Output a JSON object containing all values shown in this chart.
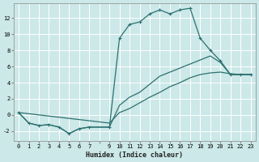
{
  "bg_color": "#cce8e8",
  "grid_color": "#ffffff",
  "line_color": "#2d7070",
  "xlabel": "Humidex (Indice chaleur)",
  "xlim": [
    -0.5,
    23.5
  ],
  "ylim": [
    -3.2,
    13.8
  ],
  "xtick_positions": [
    0,
    1,
    2,
    3,
    4,
    5,
    6,
    7,
    8,
    9,
    10,
    11,
    12,
    13,
    14,
    15,
    16,
    17,
    18,
    19,
    20,
    21,
    22,
    23
  ],
  "xtick_labels": [
    "0",
    "1",
    "2",
    "3",
    "4",
    "5",
    "6",
    "7",
    "",
    "9",
    "10",
    "11",
    "12",
    "13",
    "14",
    "15",
    "16",
    "17",
    "18",
    "19",
    "20",
    "21",
    "22",
    "23"
  ],
  "ytick_positions": [
    -2,
    0,
    2,
    4,
    6,
    8,
    10,
    12
  ],
  "curve1_x": [
    0,
    1,
    2,
    3,
    4,
    5,
    6,
    7,
    9,
    10,
    11,
    12,
    13,
    14,
    15,
    16,
    17,
    18,
    19,
    20,
    21,
    22,
    23
  ],
  "curve1_y": [
    0.3,
    -1.0,
    -1.3,
    -1.2,
    -1.5,
    -2.3,
    -1.7,
    -1.5,
    -1.5,
    9.5,
    11.2,
    11.5,
    12.5,
    13.0,
    12.5,
    13.0,
    13.2,
    9.5,
    8.0,
    6.7,
    5.0,
    5.0,
    5.0
  ],
  "curve2_x": [
    0,
    1,
    2,
    3,
    4,
    5,
    6,
    7,
    9,
    10,
    11,
    12,
    13,
    14,
    15,
    16,
    17,
    18,
    19,
    20,
    21,
    22,
    23
  ],
  "curve2_y": [
    0.3,
    -1.0,
    -1.3,
    -1.2,
    -1.5,
    -2.3,
    -1.7,
    -1.5,
    -1.5,
    1.2,
    2.2,
    2.8,
    3.8,
    4.8,
    5.3,
    5.8,
    6.3,
    6.8,
    7.3,
    6.5,
    5.0,
    5.0,
    5.0
  ],
  "curve3_x": [
    0,
    9,
    10,
    11,
    12,
    13,
    14,
    15,
    16,
    17,
    18,
    19,
    20,
    21,
    22,
    23
  ],
  "curve3_y": [
    0.3,
    -1.0,
    0.3,
    0.8,
    1.5,
    2.2,
    2.8,
    3.5,
    4.0,
    4.6,
    5.0,
    5.2,
    5.3,
    5.1,
    5.0,
    5.0
  ]
}
